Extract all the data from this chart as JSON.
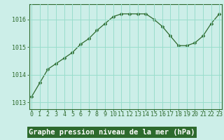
{
  "x": [
    0,
    1,
    2,
    3,
    4,
    5,
    6,
    7,
    8,
    9,
    10,
    11,
    12,
    13,
    14,
    15,
    16,
    17,
    18,
    19,
    20,
    21,
    22,
    23
  ],
  "y": [
    1013.2,
    1013.7,
    1014.2,
    1014.4,
    1014.6,
    1014.8,
    1015.1,
    1015.3,
    1015.6,
    1015.85,
    1016.1,
    1016.2,
    1016.2,
    1016.2,
    1016.2,
    1016.0,
    1015.75,
    1015.4,
    1015.05,
    1015.05,
    1015.15,
    1015.4,
    1015.85,
    1016.2
  ],
  "line_color": "#2d6a2d",
  "marker": "D",
  "marker_size": 2.5,
  "bg_color": "#cceee8",
  "grid_color": "#99ddcc",
  "xlabel": "Graphe pression niveau de la mer (hPa)",
  "xlabel_fontsize": 7.5,
  "ylabel_ticks": [
    1013,
    1014,
    1015,
    1016
  ],
  "xlim": [
    -0.3,
    23.3
  ],
  "ylim": [
    1012.75,
    1016.55
  ],
  "tick_label_fontsize": 6.0,
  "spine_color": "#2d6a2d",
  "xlabel_bg_color": "#2d6a2d",
  "xlabel_text_color": "#ffffff"
}
